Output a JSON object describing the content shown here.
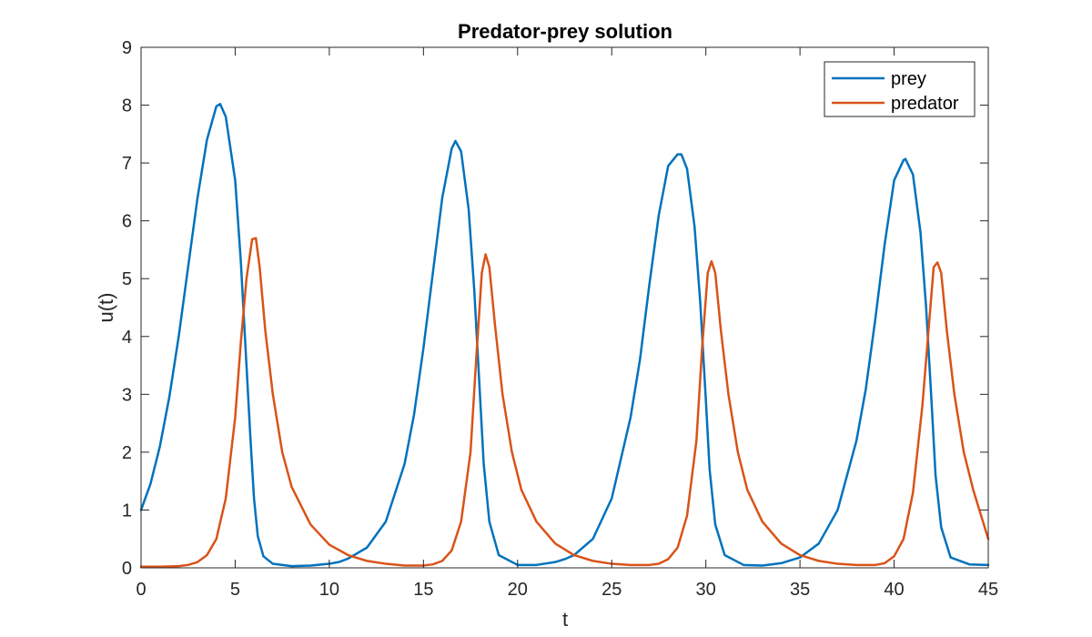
{
  "chart_data": {
    "type": "line",
    "title": "Predator-prey solution",
    "xlabel": "t",
    "ylabel": "u(t)",
    "xlim": [
      0,
      45
    ],
    "ylim": [
      0,
      9
    ],
    "xticks": [
      "0",
      "5",
      "10",
      "15",
      "20",
      "25",
      "30",
      "35",
      "40",
      "45"
    ],
    "yticks": [
      "0",
      "1",
      "2",
      "3",
      "4",
      "5",
      "6",
      "7",
      "8",
      "9"
    ],
    "grid": false,
    "legend_position": "top-right",
    "series": [
      {
        "name": "prey",
        "color": "#0072BD",
        "x": [
          0,
          0.5,
          1,
          1.5,
          2,
          2.5,
          3,
          3.5,
          4,
          4.2,
          4.5,
          5,
          5.3,
          5.6,
          5.8,
          6,
          6.2,
          6.5,
          7,
          8,
          9,
          10,
          10.5,
          11,
          12,
          13,
          14,
          14.5,
          15,
          15.5,
          16,
          16.5,
          16.7,
          17,
          17.4,
          17.7,
          18,
          18.2,
          18.5,
          19,
          20,
          21,
          22,
          22.5,
          23,
          24,
          25,
          26,
          26.5,
          27,
          27.5,
          28,
          28.5,
          28.7,
          29,
          29.4,
          29.7,
          30,
          30.2,
          30.5,
          31,
          32,
          33,
          34,
          35,
          36,
          37,
          38,
          38.5,
          39,
          39.5,
          40,
          40.5,
          40.6,
          41,
          41.4,
          41.7,
          42,
          42.2,
          42.5,
          43,
          44,
          45
        ],
        "y": [
          1.0,
          1.45,
          2.1,
          2.95,
          4.0,
          5.2,
          6.4,
          7.4,
          7.98,
          8.02,
          7.8,
          6.7,
          5.3,
          3.5,
          2.3,
          1.2,
          0.55,
          0.2,
          0.07,
          0.03,
          0.04,
          0.07,
          0.1,
          0.16,
          0.35,
          0.8,
          1.8,
          2.65,
          3.8,
          5.1,
          6.4,
          7.25,
          7.38,
          7.2,
          6.2,
          4.8,
          3.0,
          1.8,
          0.8,
          0.22,
          0.05,
          0.05,
          0.1,
          0.15,
          0.22,
          0.5,
          1.2,
          2.6,
          3.6,
          4.9,
          6.1,
          6.95,
          7.15,
          7.15,
          6.9,
          5.9,
          4.6,
          2.9,
          1.7,
          0.75,
          0.22,
          0.05,
          0.04,
          0.08,
          0.18,
          0.42,
          1.0,
          2.2,
          3.1,
          4.3,
          5.6,
          6.7,
          7.05,
          7.07,
          6.8,
          5.8,
          4.5,
          2.8,
          1.6,
          0.7,
          0.18,
          0.06,
          0.05
        ]
      },
      {
        "name": "predator",
        "color": "#D95319",
        "x": [
          0,
          1,
          2,
          2.5,
          3,
          3.5,
          4,
          4.5,
          5,
          5.3,
          5.6,
          5.9,
          6.1,
          6.3,
          6.6,
          7,
          7.5,
          8,
          9,
          10,
          11,
          12,
          13,
          14,
          15,
          15.5,
          16,
          16.5,
          17,
          17.5,
          17.8,
          18.1,
          18.3,
          18.5,
          18.8,
          19.2,
          19.7,
          20.2,
          21,
          22,
          23,
          24,
          25,
          26,
          27,
          27.5,
          28,
          28.5,
          29,
          29.5,
          29.8,
          30.1,
          30.3,
          30.5,
          30.8,
          31.2,
          31.7,
          32.2,
          33,
          34,
          35,
          36,
          37,
          38,
          39,
          39.5,
          40,
          40.5,
          41,
          41.5,
          41.8,
          42.1,
          42.3,
          42.5,
          42.8,
          43.2,
          43.7,
          44.2,
          45
        ],
        "y": [
          0.02,
          0.02,
          0.03,
          0.05,
          0.1,
          0.22,
          0.5,
          1.2,
          2.6,
          3.9,
          5.0,
          5.68,
          5.7,
          5.2,
          4.1,
          3.0,
          2.0,
          1.4,
          0.75,
          0.4,
          0.22,
          0.12,
          0.07,
          0.04,
          0.04,
          0.06,
          0.12,
          0.3,
          0.8,
          2.0,
          3.6,
          5.1,
          5.42,
          5.2,
          4.2,
          3.0,
          2.0,
          1.35,
          0.8,
          0.42,
          0.22,
          0.12,
          0.07,
          0.05,
          0.05,
          0.07,
          0.15,
          0.35,
          0.9,
          2.2,
          3.8,
          5.1,
          5.3,
          5.1,
          4.1,
          3.0,
          2.0,
          1.35,
          0.8,
          0.42,
          0.22,
          0.12,
          0.07,
          0.05,
          0.05,
          0.08,
          0.2,
          0.5,
          1.3,
          2.8,
          4.0,
          5.2,
          5.28,
          5.1,
          4.1,
          3.0,
          2.0,
          1.35,
          0.5
        ]
      }
    ]
  }
}
